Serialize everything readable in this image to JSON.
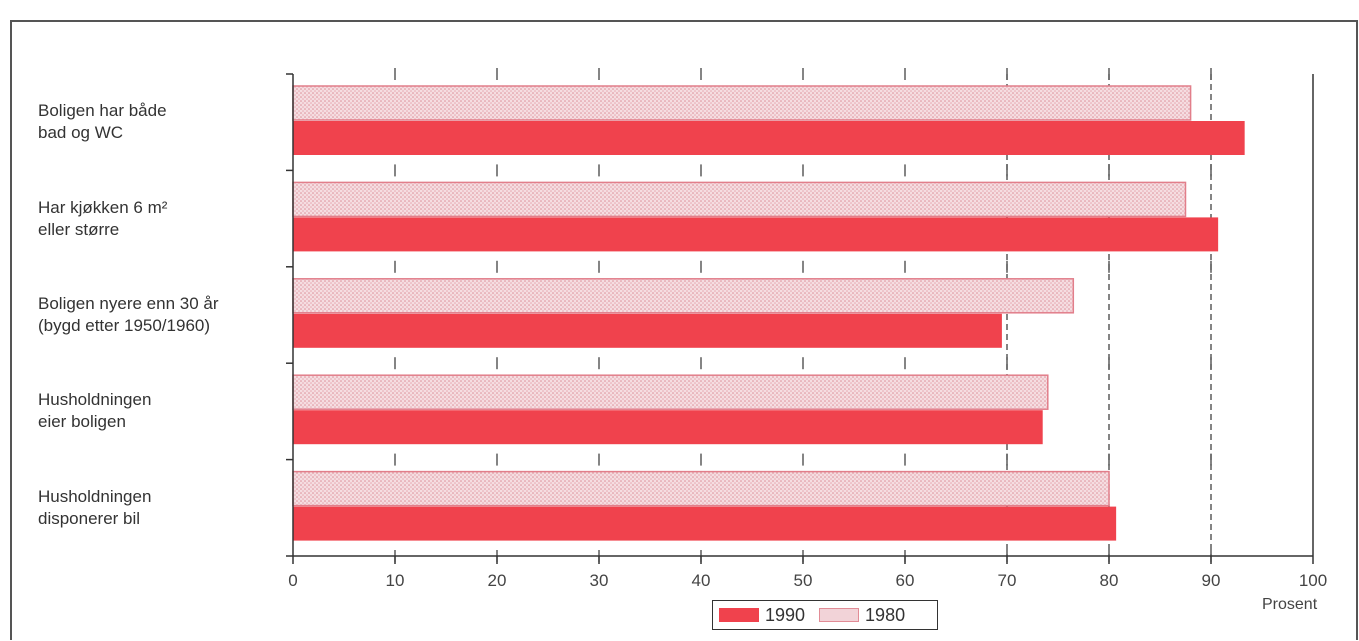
{
  "chart_data": {
    "type": "bar",
    "orientation": "horizontal",
    "categories": [
      "Boligen har både\nbad og WC",
      "Har kjøkken 6 m²\neller større",
      "Boligen nyere enn 30 år\n(bygd etter 1950/1960)",
      "Husholdningen\neier boligen",
      "Husholdningen\ndisponerer bil"
    ],
    "series": [
      {
        "name": "1980",
        "values": [
          88,
          87.5,
          76.5,
          74,
          80
        ]
      },
      {
        "name": "1990",
        "values": [
          93.3,
          90.7,
          69.5,
          73.5,
          80.7
        ]
      }
    ],
    "colors": {
      "1990": "#f0424d",
      "1980": "#f2d3d8"
    },
    "xlabel": "Prosent",
    "xlim": [
      0,
      100
    ],
    "xticks": [
      "0",
      "10",
      "20",
      "30",
      "40",
      "50",
      "60",
      "70",
      "80",
      "90",
      "100"
    ],
    "reference_lines": [
      70,
      80,
      90
    ],
    "legend": {
      "placement": "bottom-center",
      "items": [
        "1990",
        "1980"
      ]
    }
  }
}
